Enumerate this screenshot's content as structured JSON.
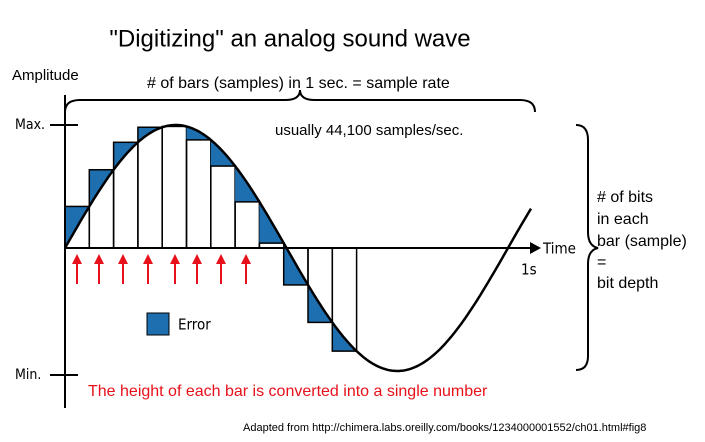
{
  "title": "\"Digitizing\" an analog sound wave",
  "axis": {
    "y_label": "Amplitude",
    "max": "Max.",
    "min": "Min.",
    "x_label": "Time",
    "x_end": "1s"
  },
  "sample_rate": {
    "label": "# of bars (samples) in 1 sec. = sample rate",
    "note": "usually 44,100 samples/sec."
  },
  "bit_depth": {
    "lines": [
      "# of bits",
      "in each",
      "bar (sample)",
      "=",
      "bit depth"
    ]
  },
  "legend": {
    "error": "Error"
  },
  "caption": "The height of each bar is converted into a single number",
  "source": "Adapted from http://chimera.labs.oreilly.com/books/1234000001552/ch01.html#fig8"
}
